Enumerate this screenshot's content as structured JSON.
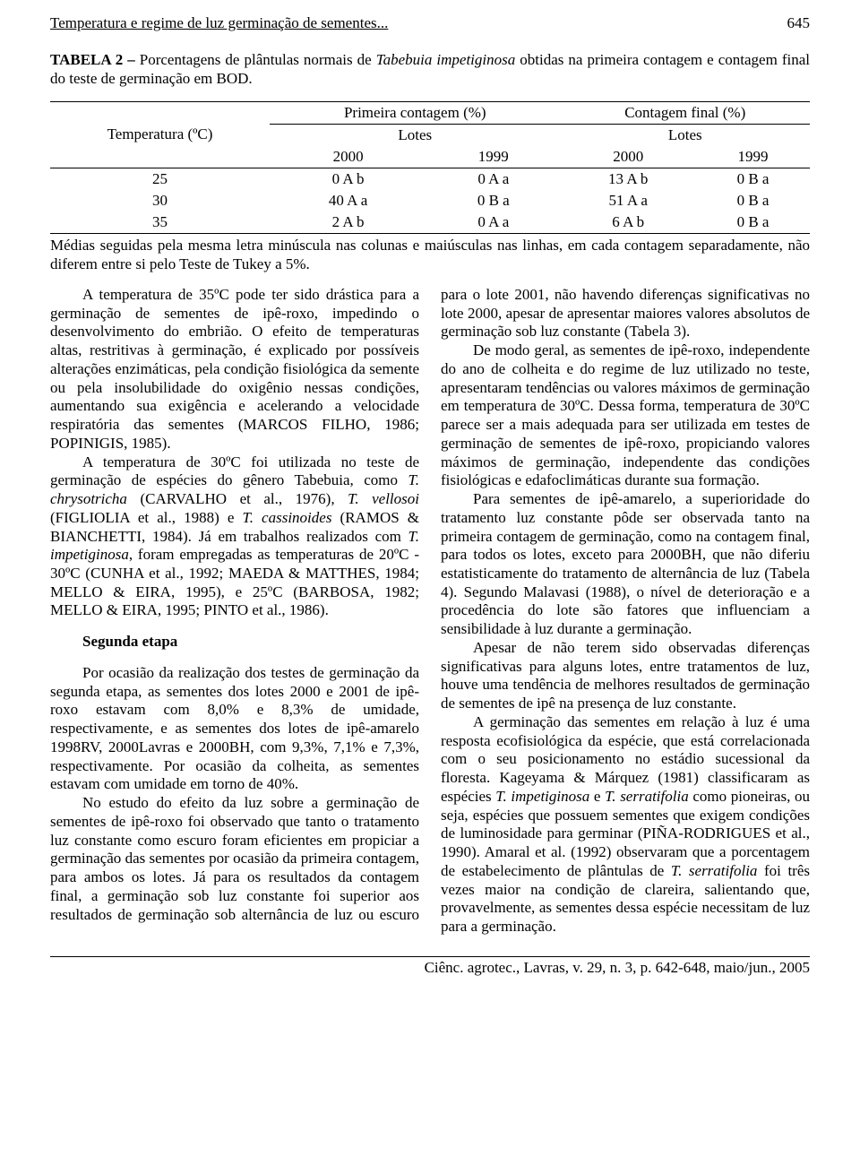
{
  "header": {
    "running_title": "Temperatura e regime de luz germinação de sementes...",
    "page_number": "645"
  },
  "table2": {
    "caption_prefix": "TABELA 2 – ",
    "caption_body": "Porcentagens de plântulas normais de ",
    "caption_italic": "Tabebuia impetiginosa",
    "caption_suffix": " obtidas na primeira contagem e contagem final do teste de germinação em BOD.",
    "col_header_left": "Temperatura (ºC)",
    "group1": "Primeira contagem (%)",
    "group2": "Contagem final (%)",
    "sub_label": "Lotes",
    "years": [
      "2000",
      "1999",
      "2000",
      "1999"
    ],
    "rows": [
      {
        "t": "25",
        "c": [
          "0 A b",
          "0 A a",
          "13 A b",
          "0 B a"
        ]
      },
      {
        "t": "30",
        "c": [
          "40 A a",
          "0 B a",
          "51 A a",
          "0 B a"
        ]
      },
      {
        "t": "35",
        "c": [
          "2 A b",
          "0 A a",
          "6 A b",
          "0 B a"
        ]
      }
    ],
    "note": "Médias seguidas pela mesma letra minúscula nas colunas e maiúsculas nas linhas, em cada contagem separadamente, não diferem entre si pelo Teste de Tukey a 5%."
  },
  "body": {
    "p1": "A temperatura de 35ºC pode ter sido drástica para a germinação de sementes de ipê-roxo, impedindo o desenvolvimento do embrião. O efeito de temperaturas altas, restritivas à germinação, é explicado por possíveis alterações enzimáticas, pela condição fisiológica da semente ou pela insolubilidade do oxigênio nessas condições, aumentando sua exigência e acelerando a velocidade respiratória das sementes (MARCOS FILHO, 1986; POPINIGIS, 1985).",
    "p2_a": "A temperatura de 30ºC foi utilizada no teste de germinação de espécies do gênero Tabebuia, como ",
    "p2_i1": "T. chrysotricha",
    "p2_b": " (CARVALHO et al., 1976), ",
    "p2_i2": "T. vellosoi",
    "p2_c": " (FIGLIOLIA et al., 1988) e ",
    "p2_i3": "T. cassinoides",
    "p2_d": " (RAMOS & BIANCHETTI, 1984). Já em trabalhos realizados com ",
    "p2_i4": "T. impetiginosa",
    "p2_e": ", foram empregadas as temperaturas de 20ºC - 30ºC (CUNHA et al., 1992; MAEDA & MATTHES, 1984; MELLO & EIRA, 1995), e 25ºC (BARBOSA, 1982; MELLO & EIRA, 1995; PINTO et al., 1986).",
    "subhead": "Segunda etapa",
    "p3": "Por ocasião da realização dos testes de germinação da segunda etapa, as sementes dos lotes 2000 e 2001 de ipê-roxo estavam com 8,0% e 8,3% de umidade, respectivamente, e as sementes dos lotes de ipê-amarelo 1998RV, 2000Lavras e 2000BH, com 9,3%, 7,1% e 7,3%, respectivamente. Por ocasião da colheita, as sementes estavam com umidade em torno de 40%.",
    "p4": "No estudo do efeito da luz sobre a germinação de sementes de ipê-roxo foi observado que tanto o tratamento luz constante como escuro foram eficientes em propiciar a germinação das sementes por ocasião da primeira contagem, para ambos os lotes. Já para os resultados da contagem final, a germinação sob luz constante foi superior aos resultados de germinação sob alternância de luz ou escuro para o lote 2001, não havendo diferenças significativas no lote 2000, apesar de apresentar maiores valores absolutos de germinação sob luz constante (Tabela 3).",
    "p5": "De modo geral, as sementes de ipê-roxo, independente do ano de colheita e do regime de luz utilizado no teste, apresentaram tendências ou valores máximos de germinação em temperatura de 30ºC. Dessa forma, temperatura de 30ºC parece ser a mais adequada para ser utilizada em testes de germinação de sementes de ipê-roxo, propiciando valores máximos de germinação, independente das condições fisiológicas e edafoclimáticas durante sua formação.",
    "p6": "Para sementes de ipê-amarelo, a superioridade do tratamento luz constante pôde ser observada tanto na primeira contagem de germinação, como na contagem final, para todos os lotes, exceto para 2000BH, que não diferiu estatisticamente do tratamento de alternância de luz (Tabela 4). Segundo Malavasi (1988), o nível de deterioração e a procedência do lote são fatores que influenciam a sensibilidade à luz durante a germinação.",
    "p7": "Apesar de não terem sido observadas diferenças significativas para alguns lotes, entre tratamentos de luz, houve uma tendência de melhores resultados de germinação de sementes de ipê na presença de luz constante.",
    "p8_a": "A germinação das sementes em relação à luz é uma resposta ecofisiológica da espécie, que está correlacionada com o seu posicionamento no estádio sucessional da floresta. Kageyama & Márquez (1981) classificaram as espécies ",
    "p8_i1": "T. impetiginosa",
    "p8_b": " e ",
    "p8_i2": "T. serratifolia",
    "p8_c": " como pioneiras, ou seja, espécies que possuem sementes que exigem condições de luminosidade para germinar (PIÑA-RODRIGUES et al., 1990). Amaral et al. (1992) observaram que a porcentagem de estabelecimento de plântulas de ",
    "p8_i3": "T. serratifolia",
    "p8_d": " foi três vezes maior na condição de clareira, salientando que, provavelmente, as sementes dessa espécie necessitam de luz para a germinação."
  },
  "footer": {
    "text": "Ciênc. agrotec., Lavras, v. 29, n. 3, p. 642-648, maio/jun., 2005"
  }
}
